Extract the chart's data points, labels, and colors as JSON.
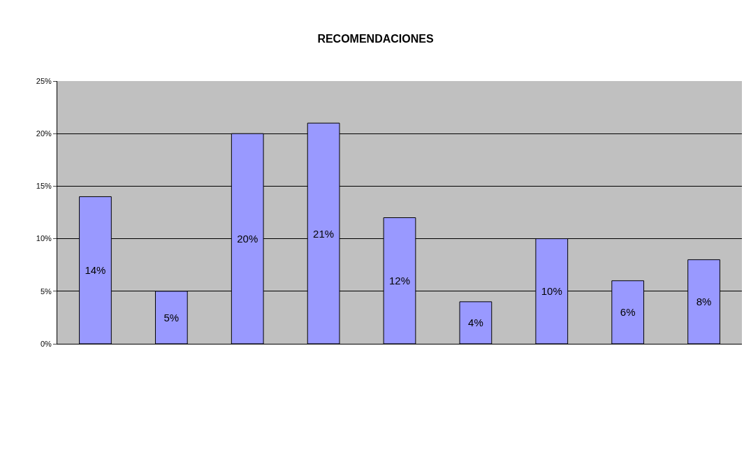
{
  "chart_data": {
    "type": "bar",
    "title": "RECOMENDACIONES",
    "categories": [
      null,
      null,
      null,
      null,
      null,
      null,
      null,
      null,
      null
    ],
    "values": [
      14,
      5,
      20,
      21,
      12,
      4,
      10,
      6,
      8
    ],
    "value_labels": [
      "14%",
      "5%",
      "20%",
      "21%",
      "12%",
      "4%",
      "10%",
      "6%",
      "8%"
    ],
    "color": "#9999ff",
    "ylim": [
      0,
      25
    ],
    "yticks": [
      {
        "value": 0,
        "label": "0%"
      },
      {
        "value": 5,
        "label": "5%"
      },
      {
        "value": 10,
        "label": "10%"
      },
      {
        "value": 15,
        "label": "15%"
      },
      {
        "value": 20,
        "label": "20%"
      },
      {
        "value": 25,
        "label": "25%"
      }
    ],
    "grid": "y",
    "legend": false
  }
}
